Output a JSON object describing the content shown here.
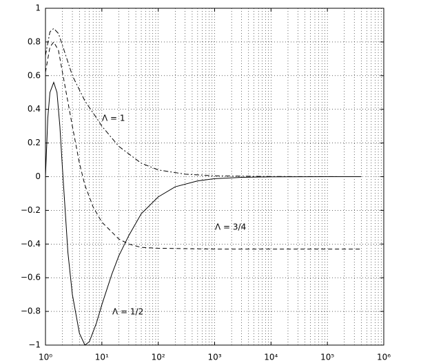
{
  "chart_data": {
    "type": "line",
    "xscale": "log",
    "grid": true,
    "xlim": [
      1,
      1000000
    ],
    "ylim": [
      -1,
      1
    ],
    "xticks": [
      {
        "value": 1,
        "label": "10⁰"
      },
      {
        "value": 10,
        "label": "10¹"
      },
      {
        "value": 100,
        "label": "10²"
      },
      {
        "value": 1000,
        "label": "10³"
      },
      {
        "value": 10000,
        "label": "10⁴"
      },
      {
        "value": 100000,
        "label": "10⁵"
      },
      {
        "value": 1000000,
        "label": "10⁶"
      }
    ],
    "yticks": [
      {
        "value": -1,
        "label": "−1"
      },
      {
        "value": -0.8,
        "label": "−0.8"
      },
      {
        "value": -0.6,
        "label": "−0.6"
      },
      {
        "value": -0.4,
        "label": "−0.4"
      },
      {
        "value": -0.2,
        "label": "−0.2"
      },
      0,
      0.2,
      0.4,
      0.6,
      0.8,
      1
    ],
    "annotations": [
      "Λ = 1",
      "Λ = 3/4",
      "Λ = 1/2"
    ],
    "series": [
      {
        "color": "#000000",
        "dash": "solid",
        "x": [
          1,
          1.1,
          1.2,
          1.4,
          1.6,
          1.8,
          2,
          2.5,
          3,
          4,
          5,
          6,
          8,
          10,
          15,
          20,
          30,
          50,
          100,
          200,
          500,
          1000,
          3000,
          10000,
          100000,
          400000
        ],
        "values": [
          0,
          0.35,
          0.5,
          0.56,
          0.5,
          0.3,
          0.05,
          -0.45,
          -0.7,
          -0.93,
          -1.0,
          -0.98,
          -0.87,
          -0.76,
          -0.58,
          -0.47,
          -0.35,
          -0.22,
          -0.12,
          -0.06,
          -0.025,
          -0.012,
          -0.004,
          -0.001,
          0,
          0
        ]
      },
      {
        "color": "#000000",
        "dash": "dashed",
        "x": [
          1,
          1.2,
          1.4,
          1.7,
          2,
          3,
          4,
          5,
          7,
          10,
          20,
          30,
          50,
          100,
          1000,
          400000
        ],
        "values": [
          0.62,
          0.77,
          0.8,
          0.75,
          0.62,
          0.3,
          0.08,
          -0.05,
          -0.18,
          -0.27,
          -0.37,
          -0.4,
          -0.42,
          -0.425,
          -0.43,
          -0.43
        ]
      },
      {
        "color": "#000000",
        "dash": "dashdot",
        "x": [
          1,
          1.2,
          1.4,
          1.7,
          2,
          3,
          5,
          8,
          10,
          20,
          50,
          100,
          300,
          1000,
          10000,
          400000
        ],
        "values": [
          0.72,
          0.86,
          0.88,
          0.85,
          0.78,
          0.6,
          0.45,
          0.35,
          0.3,
          0.18,
          0.08,
          0.04,
          0.015,
          0.005,
          0.001,
          0
        ]
      }
    ]
  }
}
